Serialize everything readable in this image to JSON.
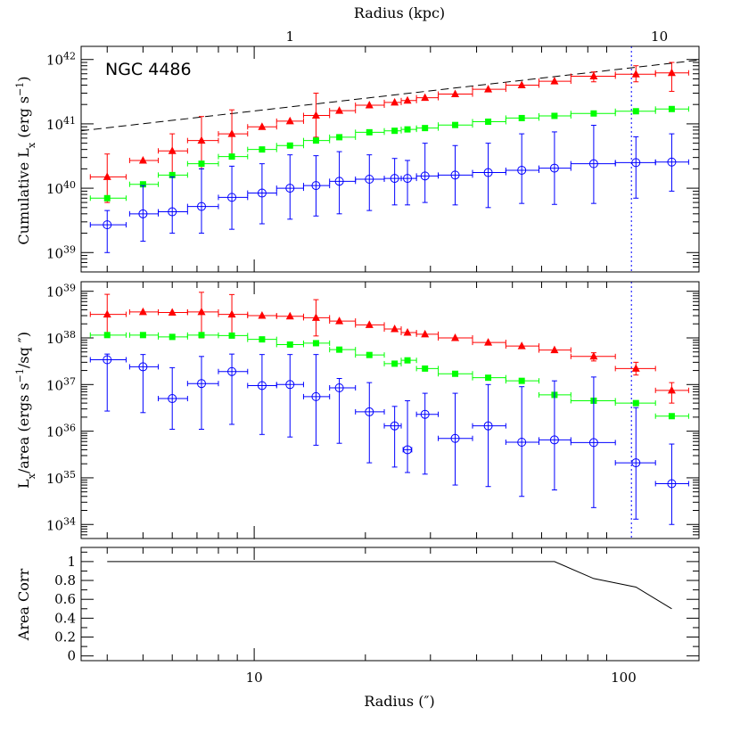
{
  "chart_data": [
    {
      "type": "scatter",
      "title": "",
      "top_axis": {
        "label": "Radius (kpc)",
        "ticks": [
          {
            "v": 1,
            "label": "1"
          },
          {
            "v": 10,
            "label": "10"
          }
        ],
        "arcsec_per_kpc": 12.5
      },
      "xlabel": "",
      "xscale": "log",
      "xlim": [
        3.4,
        160
      ],
      "ylabel": "Cumulative L_x (erg s^-1)",
      "yscale": "log",
      "ylim": [
        5e+38,
        1.6e+42
      ],
      "annotation": "NGC 4486",
      "vline_x": 105,
      "dashed_line": {
        "x": [
          3.4,
          160
        ],
        "y": [
          7.8e+40,
          9.8e+41
        ]
      },
      "series": [
        {
          "color": "#ff0000",
          "marker": "triangle",
          "x": [
            4,
            5,
            6,
            7.2,
            8.7,
            10.5,
            12.5,
            14.7,
            17,
            20.5,
            24,
            26,
            29,
            35,
            43,
            53,
            65,
            83,
            108,
            135
          ],
          "y": [
            1.5e+40,
            2.7e+40,
            3.8e+40,
            5.5e+40,
            7e+40,
            9e+40,
            1.1e+41,
            1.35e+41,
            1.6e+41,
            1.95e+41,
            2.15e+41,
            2.3e+41,
            2.55e+41,
            2.9e+41,
            3.45e+41,
            4e+41,
            4.6e+41,
            5.5e+41,
            5.9e+41,
            6.2e+41
          ],
          "ylo": [
            6e+39,
            null,
            1.7e+40,
            2e+40,
            3e+40,
            null,
            null,
            6.2e+40,
            null,
            null,
            null,
            null,
            null,
            null,
            null,
            null,
            null,
            4.5e+41,
            4.5e+41,
            3.2e+41
          ],
          "yhi": [
            3.4e+40,
            null,
            7e+40,
            1.3e+41,
            1.65e+41,
            null,
            null,
            3e+41,
            null,
            null,
            null,
            null,
            null,
            null,
            null,
            null,
            null,
            6.4e+41,
            8e+41,
            9e+41
          ],
          "xlo": [
            3.6,
            4.6,
            5.5,
            6.6,
            8,
            9.6,
            11.5,
            13.6,
            16,
            18.8,
            22.5,
            25,
            27.5,
            31.5,
            39,
            48,
            59,
            72,
            95,
            122
          ],
          "xhi": [
            4.5,
            5.5,
            6.6,
            8,
            9.6,
            11.5,
            13.6,
            16,
            18.8,
            22.5,
            25,
            27.5,
            31.5,
            39,
            48,
            59,
            72,
            95,
            122,
            150
          ]
        },
        {
          "color": "#00ff00",
          "marker": "square",
          "x": [
            4,
            5,
            6,
            7.2,
            8.7,
            10.5,
            12.5,
            14.7,
            17,
            20.5,
            24,
            26,
            29,
            35,
            43,
            53,
            65,
            83,
            108,
            135
          ],
          "y": [
            7e+39,
            1.15e+40,
            1.6e+40,
            2.4e+40,
            3.1e+40,
            4e+40,
            4.6e+40,
            5.5e+40,
            6.2e+40,
            7.4e+40,
            7.8e+40,
            8.2e+40,
            8.6e+40,
            9.6e+40,
            1.08e+41,
            1.23e+41,
            1.33e+41,
            1.45e+41,
            1.57e+41,
            1.7e+41
          ],
          "ylo": [
            null,
            null,
            null,
            null,
            null,
            null,
            null,
            null,
            null,
            null,
            null,
            null,
            null,
            null,
            null,
            null,
            null,
            null,
            null,
            null
          ],
          "yhi": [
            null,
            null,
            null,
            null,
            null,
            null,
            null,
            null,
            null,
            null,
            null,
            null,
            null,
            null,
            null,
            null,
            null,
            null,
            null,
            null
          ],
          "xlo": [
            3.6,
            4.6,
            5.5,
            6.6,
            8,
            9.6,
            11.5,
            13.6,
            16,
            18.8,
            22.5,
            25,
            27.5,
            31.5,
            39,
            48,
            59,
            72,
            95,
            122
          ],
          "xhi": [
            4.5,
            5.5,
            6.6,
            8,
            9.6,
            11.5,
            13.6,
            16,
            18.8,
            22.5,
            25,
            27.5,
            31.5,
            39,
            48,
            59,
            72,
            95,
            122,
            150
          ]
        },
        {
          "color": "#0000ff",
          "marker": "circle",
          "x": [
            4,
            5,
            6,
            7.2,
            8.7,
            10.5,
            12.5,
            14.7,
            17,
            20.5,
            24,
            26,
            29,
            35,
            43,
            53,
            65,
            83,
            108,
            135
          ],
          "y": [
            2.7e+39,
            4e+39,
            4.3e+39,
            5.2e+39,
            7.2e+39,
            8.4e+39,
            1e+40,
            1.1e+40,
            1.28e+40,
            1.38e+40,
            1.42e+40,
            1.42e+40,
            1.55e+40,
            1.6e+40,
            1.75e+40,
            1.9e+40,
            2.05e+40,
            2.4e+40,
            2.5e+40,
            2.55e+40
          ],
          "ylo": [
            1e+39,
            1.5e+39,
            2e+39,
            2e+39,
            2.3e+39,
            2.8e+39,
            3.3e+39,
            3.7e+39,
            4e+39,
            4.5e+39,
            5.5e+39,
            5.5e+39,
            6e+39,
            5.5e+39,
            5e+39,
            5.8e+39,
            5.6e+39,
            5.8e+39,
            7e+39,
            9e+39
          ],
          "yhi": [
            4.5e+39,
            1.1e+40,
            1.5e+40,
            2e+40,
            2.2e+40,
            2.4e+40,
            3.3e+40,
            3.2e+40,
            3.7e+40,
            3.3e+40,
            2.9e+40,
            2.7e+40,
            5e+40,
            4.6e+40,
            5e+40,
            7e+40,
            7.5e+40,
            9.5e+40,
            6.3e+40,
            7e+40
          ],
          "xlo": [
            3.6,
            4.6,
            5.5,
            6.6,
            8,
            9.6,
            11.5,
            13.6,
            16,
            18.8,
            22.5,
            25,
            27.5,
            31.5,
            39,
            48,
            59,
            72,
            95,
            122
          ],
          "xhi": [
            4.5,
            5.5,
            6.6,
            8,
            9.6,
            11.5,
            13.6,
            16,
            18.8,
            22.5,
            25,
            27.5,
            31.5,
            39,
            48,
            59,
            72,
            95,
            122,
            150
          ]
        }
      ]
    },
    {
      "type": "scatter",
      "title": "",
      "xlabel": "",
      "xscale": "log",
      "xlim": [
        3.4,
        160
      ],
      "ylabel": "L_x/area (ergs s^-1/sq '')",
      "yscale": "log",
      "ylim": [
        5e+33,
        1.6e+39
      ],
      "vline_x": 105,
      "series": [
        {
          "color": "#ff0000",
          "marker": "triangle",
          "x": [
            4,
            5,
            6,
            7.2,
            8.7,
            10.5,
            12.5,
            14.7,
            17,
            20.5,
            24,
            26,
            29,
            35,
            43,
            53,
            65,
            83,
            108,
            135
          ],
          "y": [
            3.2e+38,
            3.6e+38,
            3.5e+38,
            3.6e+38,
            3.2e+38,
            3e+38,
            2.9e+38,
            2.7e+38,
            2.3e+38,
            1.9e+38,
            1.55e+38,
            1.3e+38,
            1.2e+38,
            1e+38,
            8e+37,
            6.7e+37,
            5.5e+37,
            4e+37,
            2.2e+37,
            7.5e+36
          ],
          "ylo": [
            1.2e+38,
            null,
            null,
            1e+38,
            1.2e+38,
            null,
            null,
            1.1e+38,
            null,
            null,
            null,
            null,
            null,
            null,
            null,
            null,
            null,
            3.2e+37,
            1.6e+37,
            4e+36
          ],
          "yhi": [
            8.6e+38,
            null,
            null,
            9.5e+38,
            8.5e+38,
            null,
            null,
            6.6e+38,
            null,
            null,
            null,
            null,
            null,
            null,
            null,
            null,
            null,
            4.8e+37,
            3e+37,
            1.1e+37
          ],
          "xlo": [
            3.6,
            4.6,
            5.5,
            6.6,
            8,
            9.6,
            11.5,
            13.6,
            16,
            18.8,
            22.5,
            25,
            27.5,
            31.5,
            39,
            48,
            59,
            72,
            95,
            122
          ],
          "xhi": [
            4.5,
            5.5,
            6.6,
            8,
            9.6,
            11.5,
            13.6,
            16,
            18.8,
            22.5,
            25,
            27.5,
            31.5,
            39,
            48,
            59,
            72,
            95,
            122,
            150
          ]
        },
        {
          "color": "#00ff00",
          "marker": "square",
          "x": [
            4,
            5,
            6,
            7.2,
            8.7,
            10.5,
            12.5,
            14.7,
            17,
            20.5,
            24,
            26,
            29,
            35,
            43,
            53,
            65,
            83,
            108,
            135
          ],
          "y": [
            1.15e+38,
            1.15e+38,
            1.05e+38,
            1.15e+38,
            1.12e+38,
            9.3e+37,
            7.2e+37,
            7.7e+37,
            5.6e+37,
            4.3e+37,
            2.8e+37,
            3.3e+37,
            2.2e+37,
            1.7e+37,
            1.4e+37,
            1.2e+37,
            6e+36,
            4.5e+36,
            4e+36,
            2.1e+36
          ],
          "ylo": [
            null,
            null,
            null,
            null,
            null,
            null,
            null,
            null,
            null,
            null,
            null,
            null,
            null,
            null,
            null,
            null,
            null,
            null,
            null,
            null
          ],
          "yhi": [
            null,
            null,
            null,
            null,
            null,
            null,
            null,
            null,
            null,
            null,
            null,
            null,
            null,
            null,
            null,
            null,
            null,
            null,
            null,
            null
          ],
          "xlo": [
            3.6,
            4.6,
            5.5,
            6.6,
            8,
            9.6,
            11.5,
            13.6,
            16,
            18.8,
            22.5,
            25,
            27.5,
            31.5,
            39,
            48,
            59,
            72,
            95,
            122
          ],
          "xhi": [
            4.5,
            5.5,
            6.6,
            8,
            9.6,
            11.5,
            13.6,
            16,
            18.8,
            22.5,
            25,
            27.5,
            31.5,
            39,
            48,
            59,
            72,
            95,
            122,
            150
          ]
        },
        {
          "color": "#0000ff",
          "marker": "circle",
          "x": [
            4,
            5,
            6,
            7.2,
            8.7,
            10.5,
            12.5,
            14.7,
            17,
            20.5,
            24,
            26,
            29,
            35,
            43,
            53,
            65,
            83,
            108,
            135
          ],
          "y": [
            3.4e+37,
            2.4e+37,
            5e+36,
            1.05e+37,
            1.9e+37,
            9.5e+36,
            1e+37,
            5.5e+36,
            8.5e+36,
            2.6e+36,
            1.3e+36,
            4e+35,
            2.3e+36,
            7e+35,
            1.3e+36,
            5.8e+35,
            6.5e+35,
            5.7e+35,
            2.1e+35,
            7.5e+34
          ],
          "ylo": [
            2.7e+36,
            2.5e+36,
            1.1e+36,
            1.1e+36,
            1.4e+36,
            8.5e+35,
            7.5e+35,
            5e+35,
            5.5e+35,
            2.1e+35,
            1.7e+35,
            1.3e+35,
            1.2e+35,
            7e+34,
            6.5e+34,
            4e+34,
            5.5e+34,
            2.3e+34,
            1.3e+34,
            1e+34
          ],
          "yhi": [
            4.5e+37,
            4.4e+37,
            2.3e+37,
            4e+37,
            4.5e+37,
            4.4e+37,
            4.4e+37,
            4.4e+37,
            1.35e+37,
            1.1e+37,
            3.4e+36,
            4.5e+36,
            6.5e+36,
            6.5e+36,
            1e+37,
            9e+36,
            1.2e+37,
            1.45e+37,
            3.2e+36,
            5.3e+35
          ],
          "xlo": [
            3.6,
            4.6,
            5.5,
            6.6,
            8,
            9.6,
            11.5,
            13.6,
            16,
            18.8,
            22.5,
            25.3,
            27.5,
            31.5,
            39,
            48,
            59,
            72,
            95,
            122
          ],
          "xhi": [
            4.5,
            5.5,
            6.6,
            8,
            9.6,
            11.5,
            13.6,
            16,
            18.8,
            22.5,
            25,
            26.7,
            31.5,
            39,
            48,
            59,
            72,
            95,
            122,
            150
          ]
        }
      ]
    },
    {
      "type": "line",
      "title": "",
      "xlabel": "Radius ('')",
      "xscale": "log",
      "xlim": [
        3.4,
        160
      ],
      "ylabel": "Area Corr",
      "ylim": [
        -0.05,
        1.15
      ],
      "yticks": [
        {
          "v": 0,
          "label": "0"
        },
        {
          "v": 0.2,
          "label": "0.2"
        },
        {
          "v": 0.4,
          "label": "0.4"
        },
        {
          "v": 0.6,
          "label": "0.6"
        },
        {
          "v": 0.8,
          "label": "0.8"
        },
        {
          "v": 1,
          "label": "1"
        }
      ],
      "xticks": [
        {
          "v": 10,
          "label": "10"
        },
        {
          "v": 100,
          "label": "100"
        }
      ],
      "series": [
        {
          "color": "#000000",
          "x": [
            4,
            65,
            83,
            108,
            135
          ],
          "y": [
            1,
            1,
            0.82,
            0.73,
            0.5
          ]
        }
      ]
    }
  ]
}
